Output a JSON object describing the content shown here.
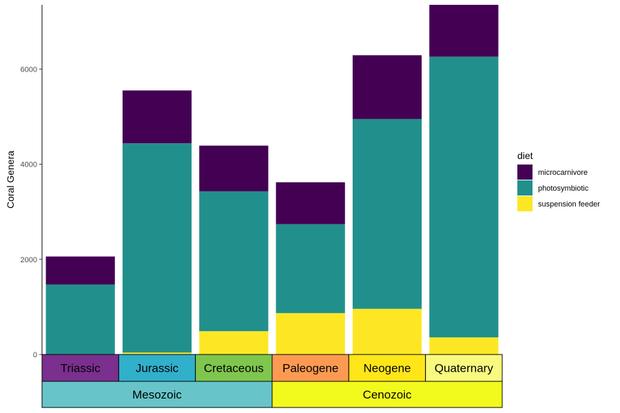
{
  "chart_data": {
    "type": "bar",
    "stacked": true,
    "title": "",
    "xlabel": "",
    "ylabel": "Coral Genera",
    "ylim": [
      0,
      7350
    ],
    "yticks": [
      0,
      2000,
      4000,
      6000
    ],
    "categories": [
      "Triassic",
      "Jurassic",
      "Cretaceous",
      "Paleogene",
      "Neogene",
      "Quaternary"
    ],
    "series": [
      {
        "name": "suspension feeder",
        "color": "#FDE725",
        "values": [
          0,
          40,
          490,
          870,
          960,
          360
        ]
      },
      {
        "name": "photosymbiotic",
        "color": "#21908C",
        "values": [
          1470,
          4400,
          2940,
          1870,
          3990,
          5900
        ]
      },
      {
        "name": "microcarnivore",
        "color": "#440154",
        "values": [
          590,
          1110,
          960,
          880,
          1340,
          1090
        ]
      }
    ],
    "legend": {
      "title": "diet",
      "position": "right"
    },
    "grid": false,
    "periods": [
      {
        "label": "Triassic",
        "color": "#7B2F8E"
      },
      {
        "label": "Jurassic",
        "color": "#31B0CB"
      },
      {
        "label": "Cretaceous",
        "color": "#7FC64E"
      },
      {
        "label": "Paleogene",
        "color": "#FD9A52"
      },
      {
        "label": "Neogene",
        "color": "#FFE619"
      },
      {
        "label": "Quaternary",
        "color": "#F9F97F"
      }
    ],
    "eras": [
      {
        "label": "Mesozoic",
        "color": "#67C5CA",
        "span": [
          0,
          3
        ]
      },
      {
        "label": "Cenozoic",
        "color": "#F2F91D",
        "span": [
          3,
          6
        ]
      }
    ]
  }
}
